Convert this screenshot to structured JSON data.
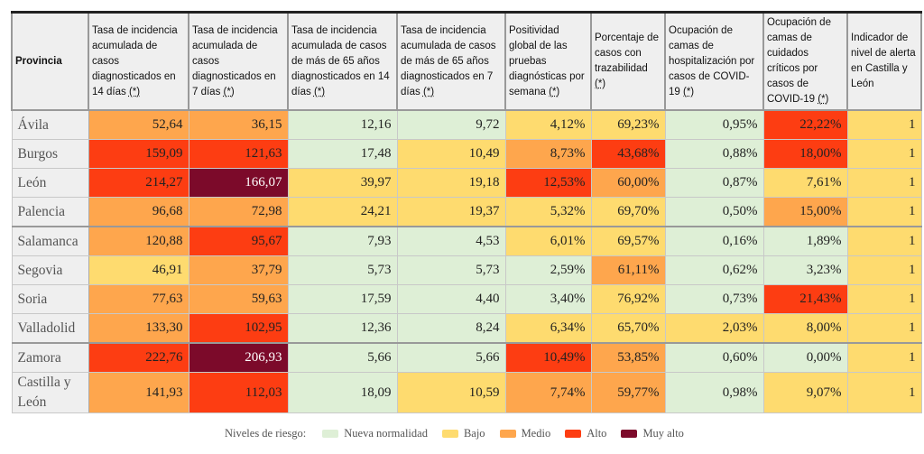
{
  "headers": [
    "Provincia",
    "Tasa de incidencia acumulada de casos diagnosticados en 14 días",
    "Tasa de incidencia acumulada de casos diagnosticados en 7 días",
    "Tasa de incidencia acumulada de casos de más de 65 años diagnosticados en 14 días",
    "Tasa de incidencia acumulada de casos de más de 65 años diagnosticados en 7 días",
    "Positividad global de las pruebas diagnósticas por semana",
    "Porcentaje de casos con trazabilidad",
    "Ocupación de camas de hospitalización por casos de COVID-19",
    "Ocupación de camas de cuidados críticos por casos de COVID-19",
    "Indicador de nivel de alerta en Castilla y León"
  ],
  "footnote_marker": "(*)",
  "rows": [
    {
      "provincia": "Ávila",
      "values": [
        "52,64",
        "36,15",
        "12,16",
        "9,72",
        "4,12%",
        "69,23%",
        "0,95%",
        "22,22%",
        "1"
      ],
      "levels": [
        "o",
        "o",
        "g",
        "g",
        "y",
        "y",
        "g",
        "r",
        "y"
      ]
    },
    {
      "provincia": "Burgos",
      "values": [
        "159,09",
        "121,63",
        "17,48",
        "10,49",
        "8,73%",
        "43,68%",
        "0,88%",
        "18,00%",
        "1"
      ],
      "levels": [
        "r",
        "r",
        "g",
        "y",
        "o",
        "r",
        "g",
        "r",
        "y"
      ]
    },
    {
      "provincia": "León",
      "values": [
        "214,27",
        "166,07",
        "39,97",
        "19,18",
        "12,53%",
        "60,00%",
        "0,87%",
        "7,61%",
        "1"
      ],
      "levels": [
        "r",
        "m",
        "y",
        "y",
        "r",
        "o",
        "g",
        "y",
        "y"
      ]
    },
    {
      "provincia": "Palencia",
      "values": [
        "96,68",
        "72,98",
        "24,21",
        "19,37",
        "5,32%",
        "69,70%",
        "0,50%",
        "15,00%",
        "1"
      ],
      "levels": [
        "o",
        "o",
        "y",
        "y",
        "y",
        "y",
        "g",
        "o",
        "y"
      ]
    },
    {
      "provincia": "Salamanca",
      "values": [
        "120,88",
        "95,67",
        "7,93",
        "4,53",
        "6,01%",
        "69,57%",
        "0,16%",
        "1,89%",
        "1"
      ],
      "levels": [
        "o",
        "r",
        "g",
        "g",
        "y",
        "y",
        "g",
        "g",
        "y"
      ]
    },
    {
      "provincia": "Segovia",
      "values": [
        "46,91",
        "37,79",
        "5,73",
        "5,73",
        "2,59%",
        "61,11%",
        "0,62%",
        "3,23%",
        "1"
      ],
      "levels": [
        "y",
        "o",
        "g",
        "g",
        "g",
        "o",
        "g",
        "g",
        "y"
      ]
    },
    {
      "provincia": "Soria",
      "values": [
        "77,63",
        "59,63",
        "17,59",
        "4,40",
        "3,40%",
        "76,92%",
        "0,73%",
        "21,43%",
        "1"
      ],
      "levels": [
        "o",
        "o",
        "g",
        "g",
        "g",
        "y",
        "g",
        "r",
        "y"
      ]
    },
    {
      "provincia": "Valladolid",
      "values": [
        "133,30",
        "102,95",
        "12,36",
        "8,24",
        "6,34%",
        "65,70%",
        "2,03%",
        "8,00%",
        "1"
      ],
      "levels": [
        "o",
        "r",
        "g",
        "g",
        "y",
        "y",
        "y",
        "y",
        "y"
      ]
    },
    {
      "provincia": "Zamora",
      "values": [
        "222,76",
        "206,93",
        "5,66",
        "5,66",
        "10,49%",
        "53,85%",
        "0,60%",
        "0,00%",
        "1"
      ],
      "levels": [
        "r",
        "m",
        "g",
        "g",
        "r",
        "o",
        "g",
        "g",
        "y"
      ]
    },
    {
      "provincia": "Castilla y León",
      "values": [
        "141,93",
        "112,03",
        "18,09",
        "10,59",
        "7,74%",
        "59,77%",
        "0,98%",
        "9,07%",
        "1"
      ],
      "levels": [
        "o",
        "r",
        "g",
        "y",
        "o",
        "o",
        "g",
        "y",
        "y"
      ]
    }
  ],
  "legend": {
    "title": "Niveles de riesgo:",
    "items": [
      {
        "label": "Nueva normalidad",
        "color": "#deefd6"
      },
      {
        "label": "Bajo",
        "color": "#fedb6f"
      },
      {
        "label": "Medio",
        "color": "#fea64d"
      },
      {
        "label": "Alto",
        "color": "#fd3d12"
      },
      {
        "label": "Muy alto",
        "color": "#7c0a2a"
      }
    ]
  }
}
